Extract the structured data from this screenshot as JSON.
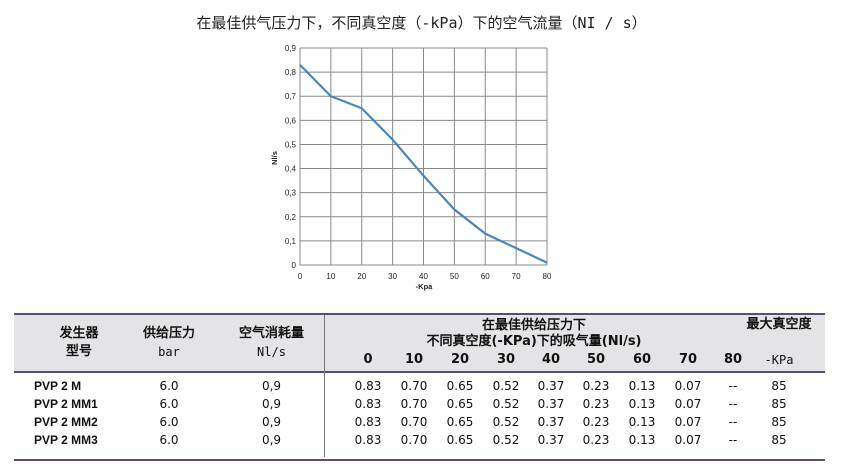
{
  "title": "在最佳供气压力下，不同真空度（-kPa）下的空气流量（NI / s）",
  "chart_data": {
    "type": "line",
    "xlabel": "-Kpa",
    "ylabel": "Nl/s",
    "x": [
      0,
      10,
      20,
      30,
      40,
      50,
      60,
      70,
      80
    ],
    "series": [
      {
        "values": [
          0.83,
          0.7,
          0.65,
          0.52,
          0.37,
          0.23,
          0.13,
          0.07,
          0.01
        ]
      }
    ],
    "xlim": [
      0,
      80
    ],
    "ylim": [
      0,
      0.9
    ],
    "xticks": [
      "0",
      "10",
      "20",
      "30",
      "40",
      "50",
      "60",
      "70",
      "80"
    ],
    "yticks": [
      "0",
      "0,1",
      "0,2",
      "0,3",
      "0,4",
      "0,5",
      "0,6",
      "0,7",
      "0,8",
      "0,9"
    ],
    "grid": true,
    "line_color": "#4a86b8"
  },
  "table": {
    "headers": {
      "generator": "发生器",
      "model": "型号",
      "pressure": "供给压力",
      "pressure_unit": "bar",
      "consumption": "空气消耗量",
      "consumption_unit": "Nl/s",
      "flow_title_1": "在最佳供给压力下",
      "flow_title_2": "不同真空度(-KPa)下的吸气量(Nl/s)",
      "max_vacuum": "最大真空度",
      "max_vacuum_unit": "-KPa",
      "vacuum_levels": [
        "0",
        "10",
        "20",
        "30",
        "40",
        "50",
        "60",
        "70",
        "80"
      ]
    },
    "rows": [
      {
        "model": "PVP 2 M",
        "pressure": "6.0",
        "consumption": "0,9",
        "flows": [
          "0.83",
          "0.70",
          "0.65",
          "0.52",
          "0.37",
          "0.23",
          "0.13",
          "0.07",
          "--"
        ],
        "max": "85"
      },
      {
        "model": "PVP 2 MM1",
        "pressure": "6.0",
        "consumption": "0,9",
        "flows": [
          "0.83",
          "0.70",
          "0.65",
          "0.52",
          "0.37",
          "0.23",
          "0.13",
          "0.07",
          "--"
        ],
        "max": "85"
      },
      {
        "model": "PVP 2 MM2",
        "pressure": "6.0",
        "consumption": "0,9",
        "flows": [
          "0.83",
          "0.70",
          "0.65",
          "0.52",
          "0.37",
          "0.23",
          "0.13",
          "0.07",
          "--"
        ],
        "max": "85"
      },
      {
        "model": "PVP 2 MM3",
        "pressure": "6.0",
        "consumption": "0,9",
        "flows": [
          "0.83",
          "0.70",
          "0.65",
          "0.52",
          "0.37",
          "0.23",
          "0.13",
          "0.07",
          "--"
        ],
        "max": "85"
      }
    ]
  }
}
